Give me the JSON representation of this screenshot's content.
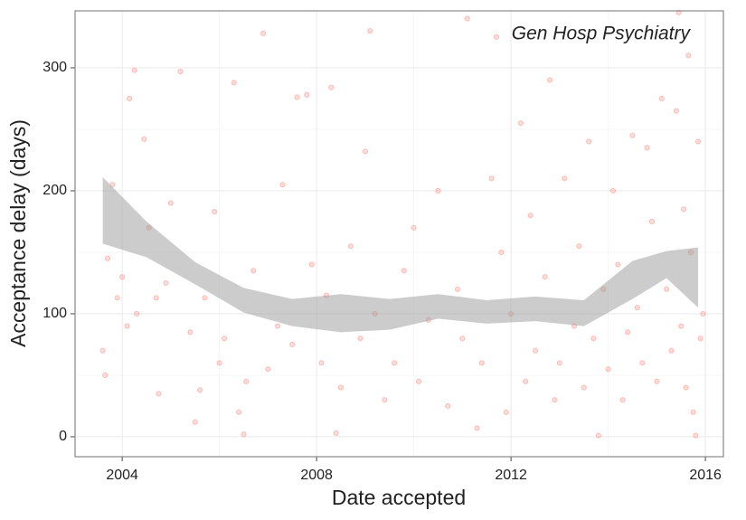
{
  "chart_data": {
    "type": "scatter",
    "annotation": "Gen Hosp Psychiatry",
    "x_label": "Date accepted",
    "y_label": "Acceptance delay (days)",
    "xlim": [
      2003.03,
      2016.37
    ],
    "ylim": [
      -16.2,
      346.3
    ],
    "xticks": [
      2004,
      2008,
      2012,
      2016
    ],
    "yticks": [
      0,
      100,
      200,
      300
    ],
    "x_minor_ticks": [
      2006,
      2010,
      2014
    ],
    "y_minor_ticks": [
      50,
      150,
      250
    ],
    "grid": true,
    "points": {
      "color": "#f8766d",
      "x": [
        2003.6,
        2003.7,
        2003.65,
        2003.8,
        2003.9,
        2004.0,
        2004.1,
        2004.15,
        2004.25,
        2004.3,
        2004.45,
        2004.55,
        2004.7,
        2004.75,
        2004.9,
        2005.0,
        2005.2,
        2005.4,
        2005.5,
        2005.6,
        2005.7,
        2005.9,
        2006.0,
        2006.1,
        2006.3,
        2006.4,
        2006.5,
        2006.55,
        2006.7,
        2006.9,
        2007.0,
        2007.2,
        2007.3,
        2007.5,
        2007.6,
        2007.8,
        2007.9,
        2008.1,
        2008.2,
        2008.3,
        2008.4,
        2008.5,
        2008.7,
        2008.9,
        2009.0,
        2009.1,
        2009.2,
        2009.4,
        2009.6,
        2009.8,
        2010.0,
        2010.1,
        2010.3,
        2010.5,
        2010.7,
        2010.9,
        2011.0,
        2011.1,
        2011.3,
        2011.4,
        2011.6,
        2011.7,
        2011.8,
        2011.9,
        2012.0,
        2012.2,
        2012.3,
        2012.4,
        2012.5,
        2012.7,
        2012.8,
        2012.9,
        2013.0,
        2013.1,
        2013.3,
        2013.4,
        2013.5,
        2013.6,
        2013.7,
        2013.8,
        2013.9,
        2014.0,
        2014.1,
        2014.2,
        2014.3,
        2014.4,
        2014.5,
        2014.6,
        2014.7,
        2014.8,
        2014.9,
        2015.0,
        2015.1,
        2015.2,
        2015.3,
        2015.4,
        2015.45,
        2015.5,
        2015.55,
        2015.6,
        2015.65,
        2015.7,
        2015.75,
        2015.8,
        2015.85,
        2015.9,
        2015.95
      ],
      "y": [
        70,
        145,
        50,
        205,
        113,
        130,
        90,
        275,
        298,
        100,
        242,
        170,
        113,
        35,
        125,
        190,
        297,
        85,
        12,
        38,
        113,
        183,
        60,
        80,
        288,
        20,
        2,
        45,
        135,
        328,
        55,
        90,
        205,
        75,
        276,
        278,
        140,
        60,
        115,
        284,
        3,
        40,
        155,
        80,
        232,
        330,
        100,
        30,
        60,
        135,
        170,
        45,
        95,
        200,
        25,
        120,
        80,
        340,
        7,
        60,
        210,
        325,
        150,
        20,
        100,
        255,
        45,
        180,
        70,
        130,
        290,
        30,
        60,
        210,
        90,
        155,
        40,
        240,
        80,
        1,
        120,
        55,
        200,
        140,
        30,
        85,
        245,
        105,
        60,
        235,
        175,
        45,
        275,
        120,
        70,
        265,
        345,
        90,
        185,
        40,
        310,
        150,
        20,
        1,
        240,
        80,
        100
      ]
    },
    "band": {
      "color": "#999999",
      "x": [
        2003.6,
        2004.5,
        2005.5,
        2006.5,
        2007.5,
        2008.5,
        2009.5,
        2010.5,
        2011.5,
        2012.5,
        2013.5,
        2014.5,
        2015.2,
        2015.85
      ],
      "upper": [
        211,
        175,
        142,
        121,
        112,
        116,
        112,
        116,
        111,
        114,
        111,
        143,
        151,
        154
      ],
      "lower": [
        157,
        146,
        124,
        101,
        90,
        85,
        87,
        96,
        92,
        94,
        90,
        112,
        129,
        105
      ]
    }
  }
}
